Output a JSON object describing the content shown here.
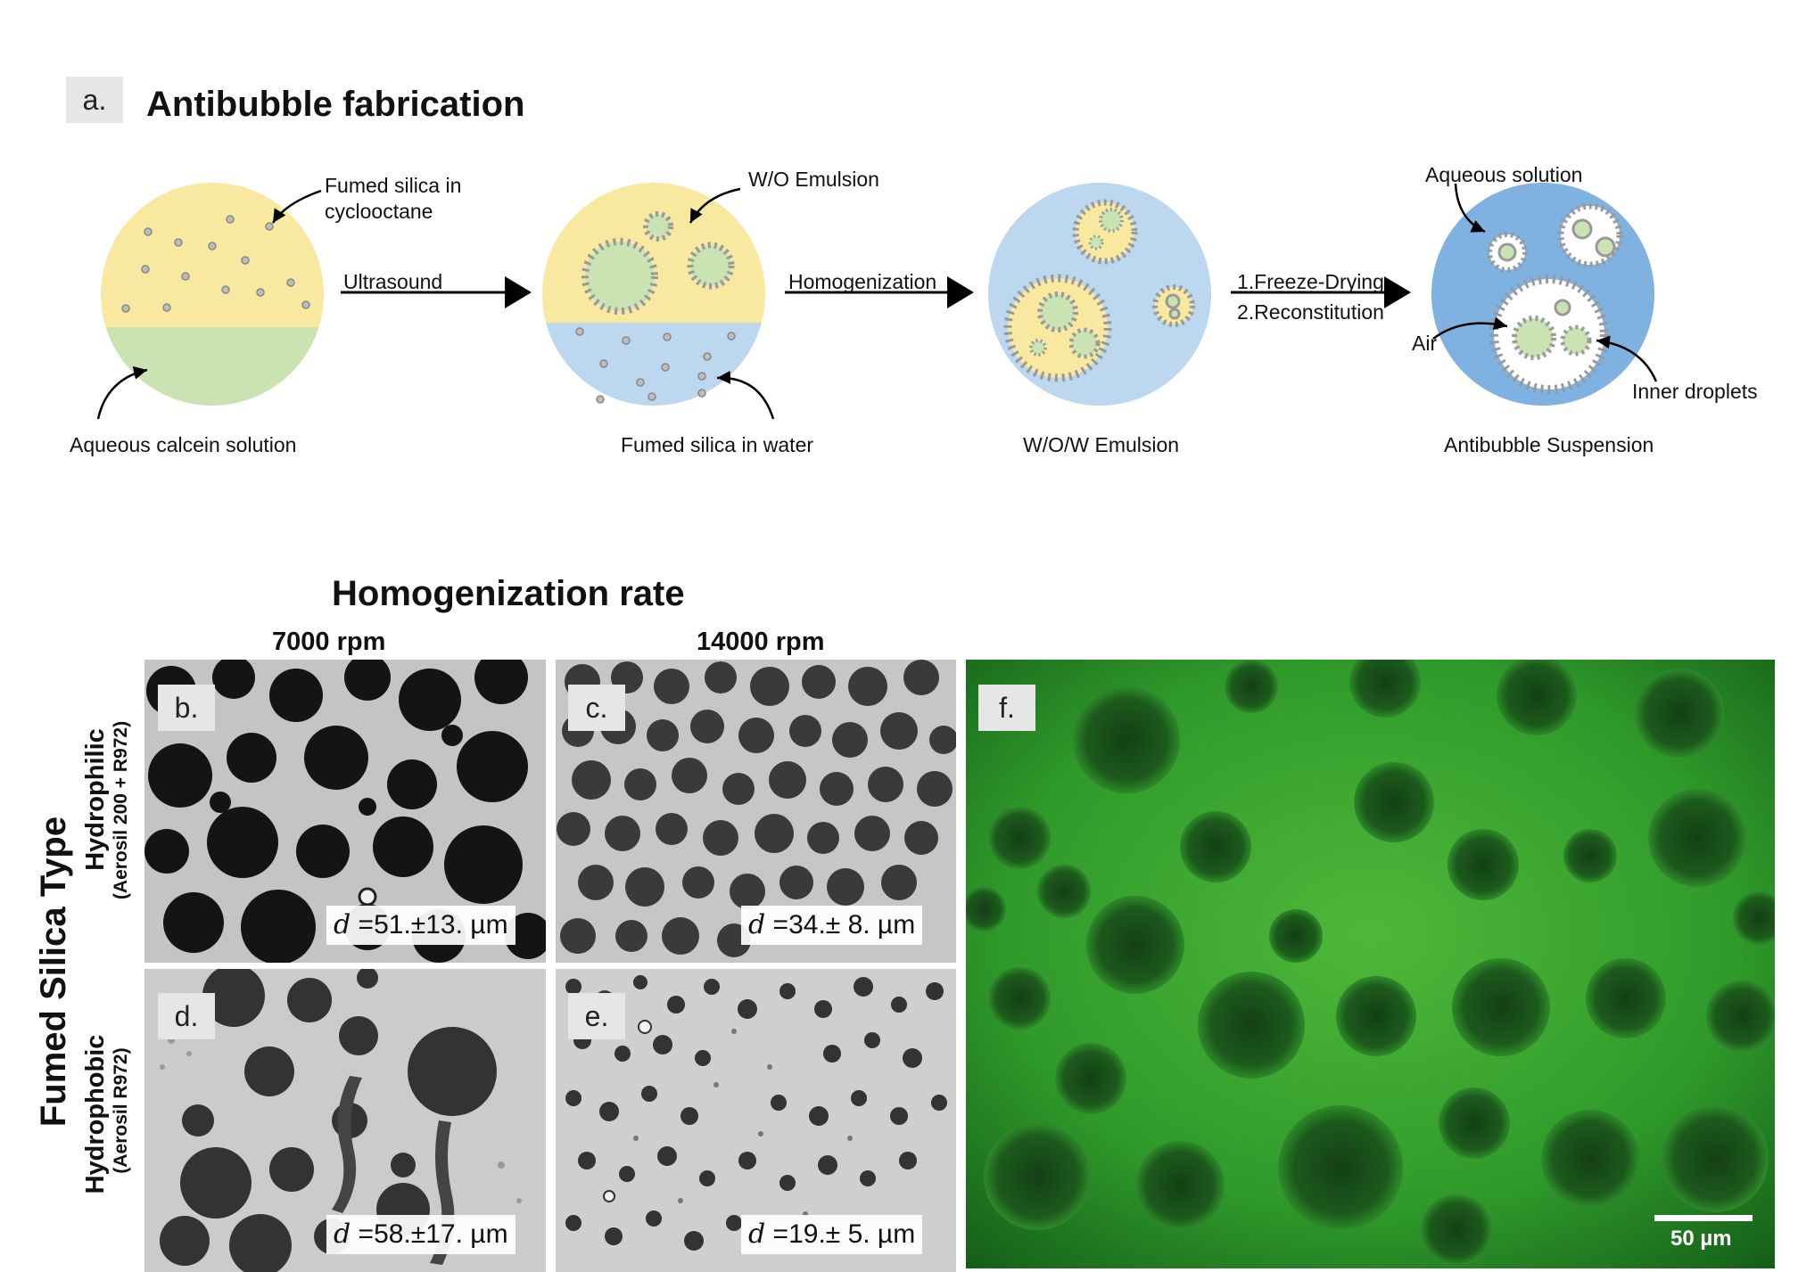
{
  "panel_a": {
    "label": "a.",
    "title": "Antibubble fabrication",
    "step1": {
      "callout_top_line1": "Fumed silica in",
      "callout_top_line2": "cyclooctane",
      "caption": "Aqueous calcein solution"
    },
    "arrow1": {
      "label": "Ultrasound"
    },
    "step2": {
      "callout_top": "W/O Emulsion",
      "callout_bottom": "Fumed silica in water"
    },
    "arrow2": {
      "label": "Homogenization"
    },
    "step3": {
      "caption": "W/O/W Emulsion"
    },
    "arrow3": {
      "label_line1": "1.Freeze-Drying",
      "label_line2": "2.Reconstitution"
    },
    "step4": {
      "callout_top": "Aqueous solution",
      "callout_air": "Air",
      "callout_inner": "Inner droplets",
      "caption": "Antibubble Suspension"
    },
    "colors": {
      "oil": "#f8e8a0",
      "aqueous_green": "#cbe3b3",
      "water_blue": "#bcd7ee",
      "suspension_blue": "#7fb1e1",
      "particle": "#bdbdbd"
    }
  },
  "grid": {
    "title": "Homogenization rate",
    "col1": "7000 rpm",
    "col2": "14000 rpm",
    "row_title": "Fumed Silica Type",
    "row1_main": "Hydrophilic",
    "row1_sub": "(Aerosil 200 + R972)",
    "row2_main": "Hydrophobic",
    "row2_sub": "(Aerosil R972)"
  },
  "panels": {
    "b": {
      "label": "b.",
      "d_symbol": "d",
      "d_value": " =51.±13. µm"
    },
    "c": {
      "label": "c.",
      "d_symbol": "d",
      "d_value": " =34.± 8. µm"
    },
    "d": {
      "label": "d.",
      "d_symbol": "d",
      "d_value": " =58.±17. µm"
    },
    "e": {
      "label": "e.",
      "d_symbol": "d",
      "d_value": " =19.± 5. µm"
    },
    "f": {
      "label": "f.",
      "scale_bar": "50 µm"
    }
  }
}
